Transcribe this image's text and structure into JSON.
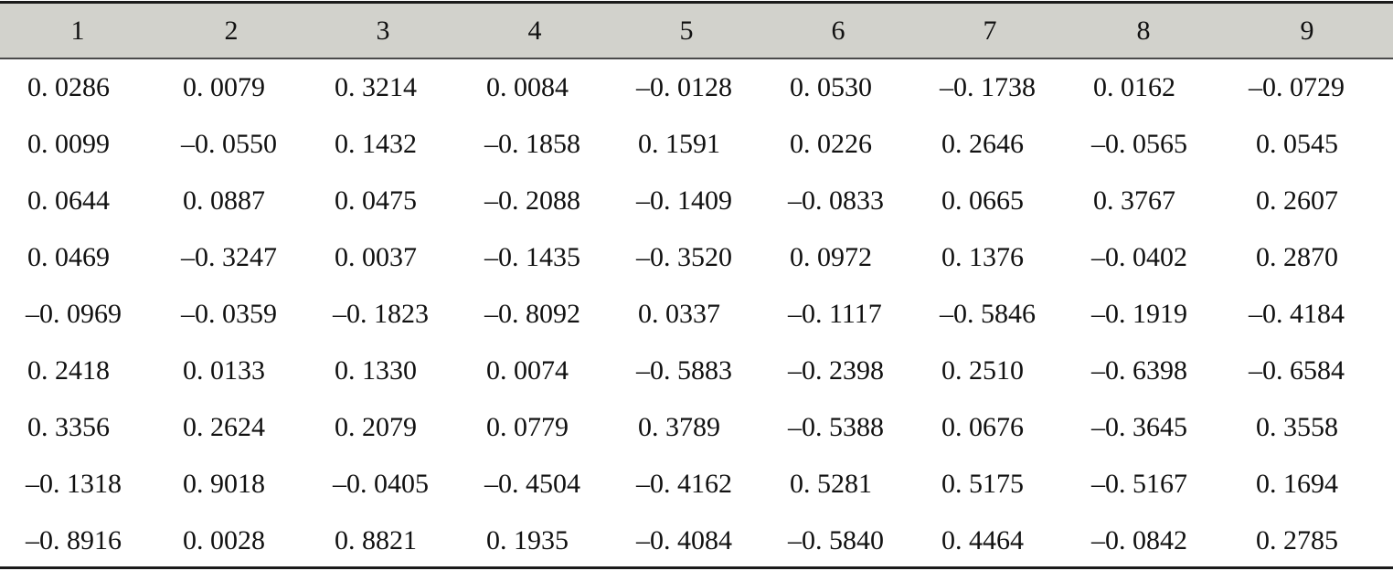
{
  "table": {
    "headers": [
      "1",
      "2",
      "3",
      "4",
      "5",
      "6",
      "7",
      "8",
      "9"
    ],
    "rows": [
      [
        "0. 0286",
        "0. 0079",
        "0. 3214",
        "0. 0084",
        "–0. 0128",
        "0. 0530",
        "–0. 1738",
        "0. 0162",
        "–0. 0729"
      ],
      [
        "0. 0099",
        "–0. 0550",
        "0. 1432",
        "–0. 1858",
        "0. 1591",
        "0. 0226",
        "0. 2646",
        "–0. 0565",
        "0. 0545"
      ],
      [
        "0. 0644",
        "0. 0887",
        "0. 0475",
        "–0. 2088",
        "–0. 1409",
        "–0. 0833",
        "0. 0665",
        "0. 3767",
        "0. 2607"
      ],
      [
        "0. 0469",
        "–0. 3247",
        "0. 0037",
        "–0. 1435",
        "–0. 3520",
        "0. 0972",
        "0. 1376",
        "–0. 0402",
        "0. 2870"
      ],
      [
        "–0. 0969",
        "–0. 0359",
        "–0. 1823",
        "–0. 8092",
        "0. 0337",
        "–0. 1117",
        "–0. 5846",
        "–0. 1919",
        "–0. 4184"
      ],
      [
        "0. 2418",
        "0. 0133",
        "0. 1330",
        "0. 0074",
        "–0. 5883",
        "–0. 2398",
        "0. 2510",
        "–0. 6398",
        "–0. 6584"
      ],
      [
        "0. 3356",
        "0. 2624",
        "0. 2079",
        "0. 0779",
        "0. 3789",
        "–0. 5388",
        "0. 0676",
        "–0. 3645",
        "0. 3558"
      ],
      [
        "–0. 1318",
        "0. 9018",
        "–0. 0405",
        "–0. 4504",
        "–0. 4162",
        "0. 5281",
        "0. 5175",
        "–0. 5167",
        "0. 1694"
      ],
      [
        "–0. 8916",
        "0. 0028",
        "0. 8821",
        "0. 1935",
        "–0. 4084",
        "–0. 5840",
        "0. 4464",
        "–0. 0842",
        "0. 2785"
      ]
    ]
  },
  "colors": {
    "header_background": "#d2d2cc",
    "rule": "#1a1a1a",
    "text": "#111111"
  }
}
